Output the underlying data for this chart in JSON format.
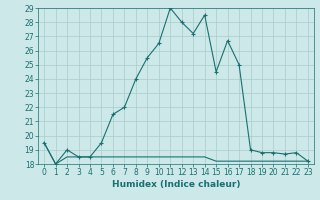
{
  "xlabel": "Humidex (Indice chaleur)",
  "ylabel": "",
  "background_color": "#cce8e8",
  "grid_color": "#aacccc",
  "line_color": "#1a7070",
  "xlim": [
    -0.5,
    23.5
  ],
  "ylim": [
    18,
    29
  ],
  "x_ticks": [
    0,
    1,
    2,
    3,
    4,
    5,
    6,
    7,
    8,
    9,
    10,
    11,
    12,
    13,
    14,
    15,
    16,
    17,
    18,
    19,
    20,
    21,
    22,
    23
  ],
  "y_ticks": [
    18,
    19,
    20,
    21,
    22,
    23,
    24,
    25,
    26,
    27,
    28,
    29
  ],
  "line1_x": [
    0,
    1,
    2,
    3,
    4,
    5,
    6,
    7,
    8,
    9,
    10,
    11,
    12,
    13,
    14,
    15,
    16,
    17,
    18,
    19,
    20,
    21,
    22,
    23
  ],
  "line1_y": [
    19.5,
    18.0,
    19.0,
    18.5,
    18.5,
    19.5,
    21.5,
    22.0,
    24.0,
    25.5,
    26.5,
    29.0,
    28.0,
    27.2,
    28.5,
    24.5,
    26.7,
    25.0,
    19.0,
    18.8,
    18.8,
    18.7,
    18.8,
    18.2
  ],
  "line2_x": [
    0,
    1,
    2,
    3,
    4,
    5,
    6,
    7,
    8,
    9,
    10,
    11,
    12,
    13,
    14,
    15,
    16,
    17,
    18,
    19,
    20,
    21,
    22,
    23
  ],
  "line2_y": [
    19.5,
    18.0,
    18.5,
    18.5,
    18.5,
    18.5,
    18.5,
    18.5,
    18.5,
    18.5,
    18.5,
    18.5,
    18.5,
    18.5,
    18.5,
    18.2,
    18.2,
    18.2,
    18.2,
    18.2,
    18.2,
    18.2,
    18.2,
    18.2
  ],
  "label_fontsize": 5.5,
  "xlabel_fontsize": 6.5,
  "tick_labelsize": 5.5,
  "linewidth": 0.8,
  "markersize": 3
}
